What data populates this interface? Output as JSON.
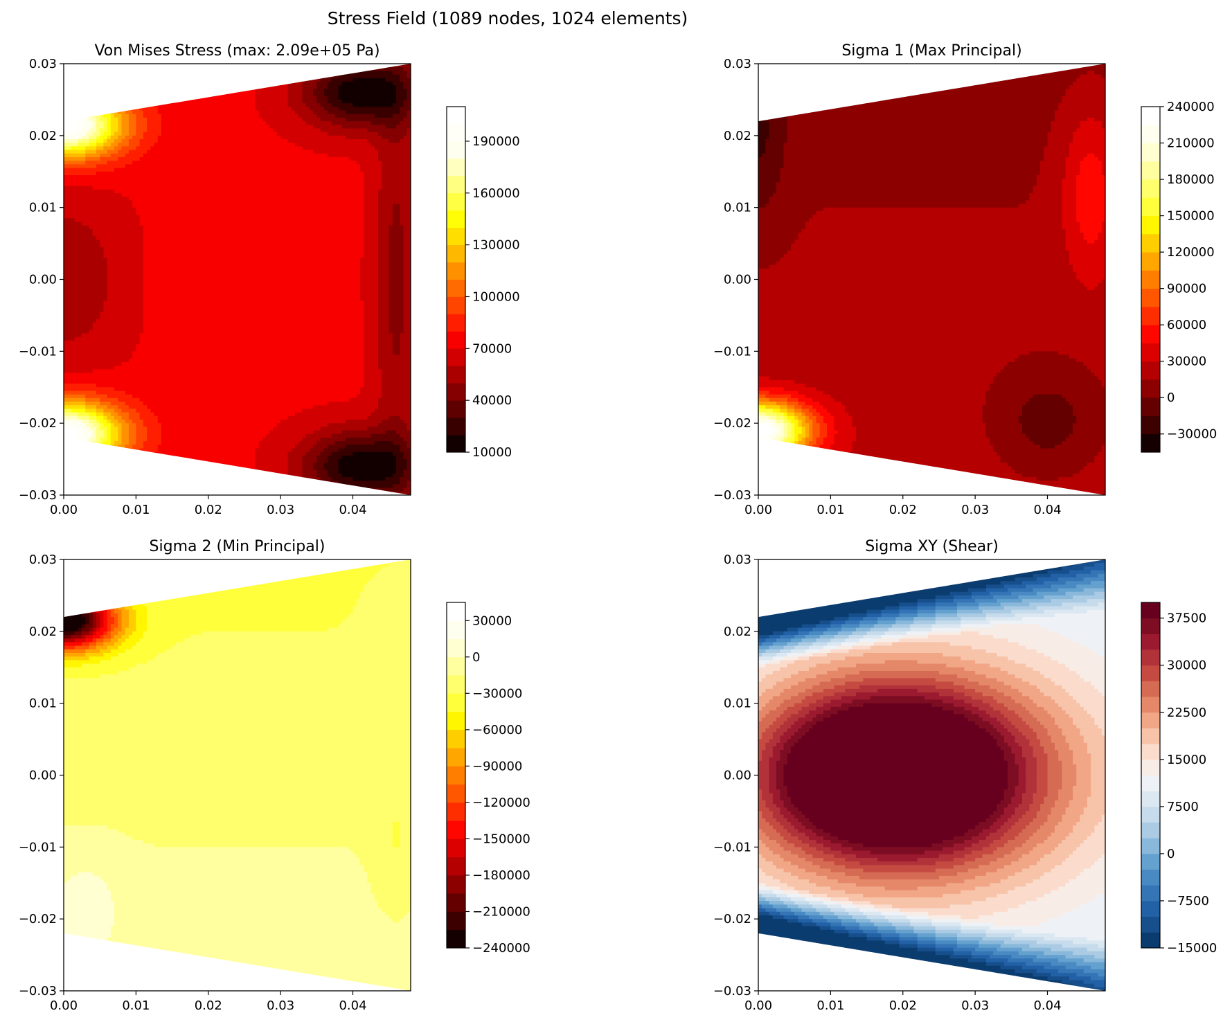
{
  "figure": {
    "suptitle": "Stress Field (1089 nodes, 1024 elements)"
  },
  "chart_data": [
    {
      "type": "heatmap",
      "subtype": "filled-contour",
      "title": "Von Mises Stress (max: 2.09e+05 Pa)",
      "xlabel": "",
      "ylabel": "",
      "xlim": [
        0.0,
        0.048
      ],
      "ylim": [
        -0.03,
        0.03
      ],
      "xticks": [
        "0.00",
        "0.01",
        "0.02",
        "0.03",
        "0.04"
      ],
      "yticks": [
        "−0.03",
        "−0.02",
        "−0.01",
        "0.00",
        "0.01",
        "0.02",
        "0.03"
      ],
      "domain_outline": [
        [
          0.0,
          0.022
        ],
        [
          0.048,
          0.03
        ],
        [
          0.048,
          -0.03
        ],
        [
          0.0,
          -0.022
        ]
      ],
      "colormap": "hot",
      "colorbar": {
        "min": 10000,
        "max": 210000,
        "step": 10000,
        "ticks": [
          10000,
          40000,
          70000,
          100000,
          130000,
          160000,
          190000
        ],
        "tick_labels": [
          "10000",
          "40000",
          "70000",
          "100000",
          "130000",
          "160000",
          "190000"
        ],
        "colors": [
          "#120000",
          "#390000",
          "#5f0000",
          "#850000",
          "#ab0000",
          "#d20000",
          "#f80000",
          "#ff1f00",
          "#ff4500",
          "#ff6b00",
          "#ff9100",
          "#ffb800",
          "#ffde00",
          "#fffe06",
          "#ffff44",
          "#ffff81",
          "#ffffbf",
          "#fffff0",
          "#fffff8",
          "#ffffff"
        ]
      },
      "max_value": 209000,
      "field_features": {
        "hotspots": [
          [
            0.0,
            0.021,
            209000
          ],
          [
            0.0,
            -0.021,
            209000
          ]
        ],
        "background": 75000,
        "center_band": [
          [
            0.02,
            0.0,
            72000
          ]
        ],
        "left_mid": [
          [
            0.0,
            0.0,
            55000
          ]
        ],
        "lows": [
          [
            0.04,
            0.025,
            15000
          ],
          [
            0.04,
            -0.025,
            15000
          ]
        ],
        "right_edge": 45000
      }
    },
    {
      "type": "heatmap",
      "subtype": "filled-contour",
      "title": "Sigma 1 (Max Principal)",
      "xlabel": "",
      "ylabel": "",
      "xlim": [
        0.0,
        0.048
      ],
      "ylim": [
        -0.03,
        0.03
      ],
      "xticks": [
        "0.00",
        "0.01",
        "0.02",
        "0.03",
        "0.04"
      ],
      "yticks": [
        "−0.03",
        "−0.02",
        "−0.01",
        "0.00",
        "0.01",
        "0.02",
        "0.03"
      ],
      "domain_outline": [
        [
          0.0,
          0.022
        ],
        [
          0.048,
          0.03
        ],
        [
          0.048,
          -0.03
        ],
        [
          0.0,
          -0.022
        ]
      ],
      "colormap": "hot",
      "colorbar": {
        "min": -45000,
        "max": 240000,
        "step": 15000,
        "ticks": [
          -30000,
          0,
          30000,
          60000,
          90000,
          120000,
          150000,
          180000,
          210000,
          240000
        ],
        "tick_labels": [
          "−30000",
          "0",
          "30000",
          "60000",
          "90000",
          "120000",
          "150000",
          "180000",
          "210000",
          "240000"
        ],
        "colors": [
          "#140000",
          "#3c0000",
          "#640000",
          "#8c0000",
          "#b40000",
          "#dc0000",
          "#ff0600",
          "#ff2e00",
          "#ff5600",
          "#ff7e00",
          "#ffa600",
          "#ffce00",
          "#fff600",
          "#ffff3c",
          "#ffff6e",
          "#ffffa0",
          "#ffffd2",
          "#fffff0",
          "#ffffff"
        ]
      },
      "field_features": {
        "hotspot": [
          0.0,
          -0.021,
          240000
        ],
        "background": 20000,
        "low_zones": [
          [
            0.0,
            0.02,
            -20000
          ],
          [
            0.035,
            0.028,
            -10000
          ]
        ]
      }
    },
    {
      "type": "heatmap",
      "subtype": "filled-contour",
      "title": "Sigma 2 (Min Principal)",
      "xlabel": "",
      "ylabel": "",
      "xlim": [
        0.0,
        0.048
      ],
      "ylim": [
        -0.03,
        0.03
      ],
      "xticks": [
        "0.00",
        "0.01",
        "0.02",
        "0.03",
        "0.04"
      ],
      "yticks": [
        "−0.03",
        "−0.02",
        "−0.01",
        "0.00",
        "0.01",
        "0.02",
        "0.03"
      ],
      "domain_outline": [
        [
          0.0,
          0.022
        ],
        [
          0.048,
          0.03
        ],
        [
          0.048,
          -0.03
        ],
        [
          0.0,
          -0.022
        ]
      ],
      "colormap": "hot",
      "colorbar": {
        "min": -240000,
        "max": 45000,
        "step": 15000,
        "ticks": [
          -240000,
          -210000,
          -180000,
          -150000,
          -120000,
          -90000,
          -60000,
          -30000,
          0,
          30000
        ],
        "tick_labels": [
          "−240000",
          "−210000",
          "−180000",
          "−150000",
          "−120000",
          "−90000",
          "−60000",
          "−30000",
          "0",
          "30000"
        ],
        "colors": [
          "#140000",
          "#3c0000",
          "#640000",
          "#8c0000",
          "#b40000",
          "#dc0000",
          "#ff0600",
          "#ff2e00",
          "#ff5600",
          "#ff7e00",
          "#ffa600",
          "#ffce00",
          "#fff600",
          "#ffff3c",
          "#ffff6e",
          "#ffffa0",
          "#ffffd2",
          "#fffff0",
          "#ffffff"
        ]
      },
      "field_features": {
        "coldspot": [
          0.0,
          0.021,
          -240000
        ],
        "background": -15000,
        "mid_band": [
          [
            0.02,
            0.002,
            -40000
          ]
        ],
        "lower_left": [
          [
            0.002,
            -0.018,
            15000
          ]
        ],
        "right_edge": -30000
      }
    },
    {
      "type": "heatmap",
      "subtype": "filled-contour",
      "title": "Sigma XY (Shear)",
      "xlabel": "",
      "ylabel": "",
      "xlim": [
        0.0,
        0.048
      ],
      "ylim": [
        -0.03,
        0.03
      ],
      "xticks": [
        "0.00",
        "0.01",
        "0.02",
        "0.03",
        "0.04"
      ],
      "yticks": [
        "−0.03",
        "−0.02",
        "−0.01",
        "0.00",
        "0.01",
        "0.02",
        "0.03"
      ],
      "domain_outline": [
        [
          0.0,
          0.022
        ],
        [
          0.048,
          0.03
        ],
        [
          0.048,
          -0.03
        ],
        [
          0.0,
          -0.022
        ]
      ],
      "colormap": "RdBu_r",
      "colorbar": {
        "min": -15000,
        "max": 40000,
        "step": 2500,
        "ticks": [
          -15000,
          -7500,
          0,
          7500,
          15000,
          22500,
          30000,
          37500
        ],
        "tick_labels": [
          "−15000",
          "−7500",
          "0",
          "7500",
          "15000",
          "22500",
          "30000",
          "37500"
        ],
        "colors": [
          "#0b3c6f",
          "#174f8c",
          "#2261a6",
          "#3575b6",
          "#4a8ac3",
          "#65a1cf",
          "#89b8da",
          "#aacbe3",
          "#c6dbec",
          "#dbe7f1",
          "#eef2f6",
          "#f8ece6",
          "#fbdbcc",
          "#f7c3a9",
          "#f1a686",
          "#e48869",
          "#d66b54",
          "#c54a41",
          "#b2323a",
          "#9b1a2f",
          "#7c0d23",
          "#67001f"
        ]
      },
      "field_features": {
        "peak": [
          0.018,
          0.0,
          37500
        ],
        "background": 20000,
        "minima": [
          [
            0.005,
            0.0225,
            -15000
          ],
          [
            0.005,
            -0.0225,
            -15000
          ]
        ]
      }
    }
  ]
}
